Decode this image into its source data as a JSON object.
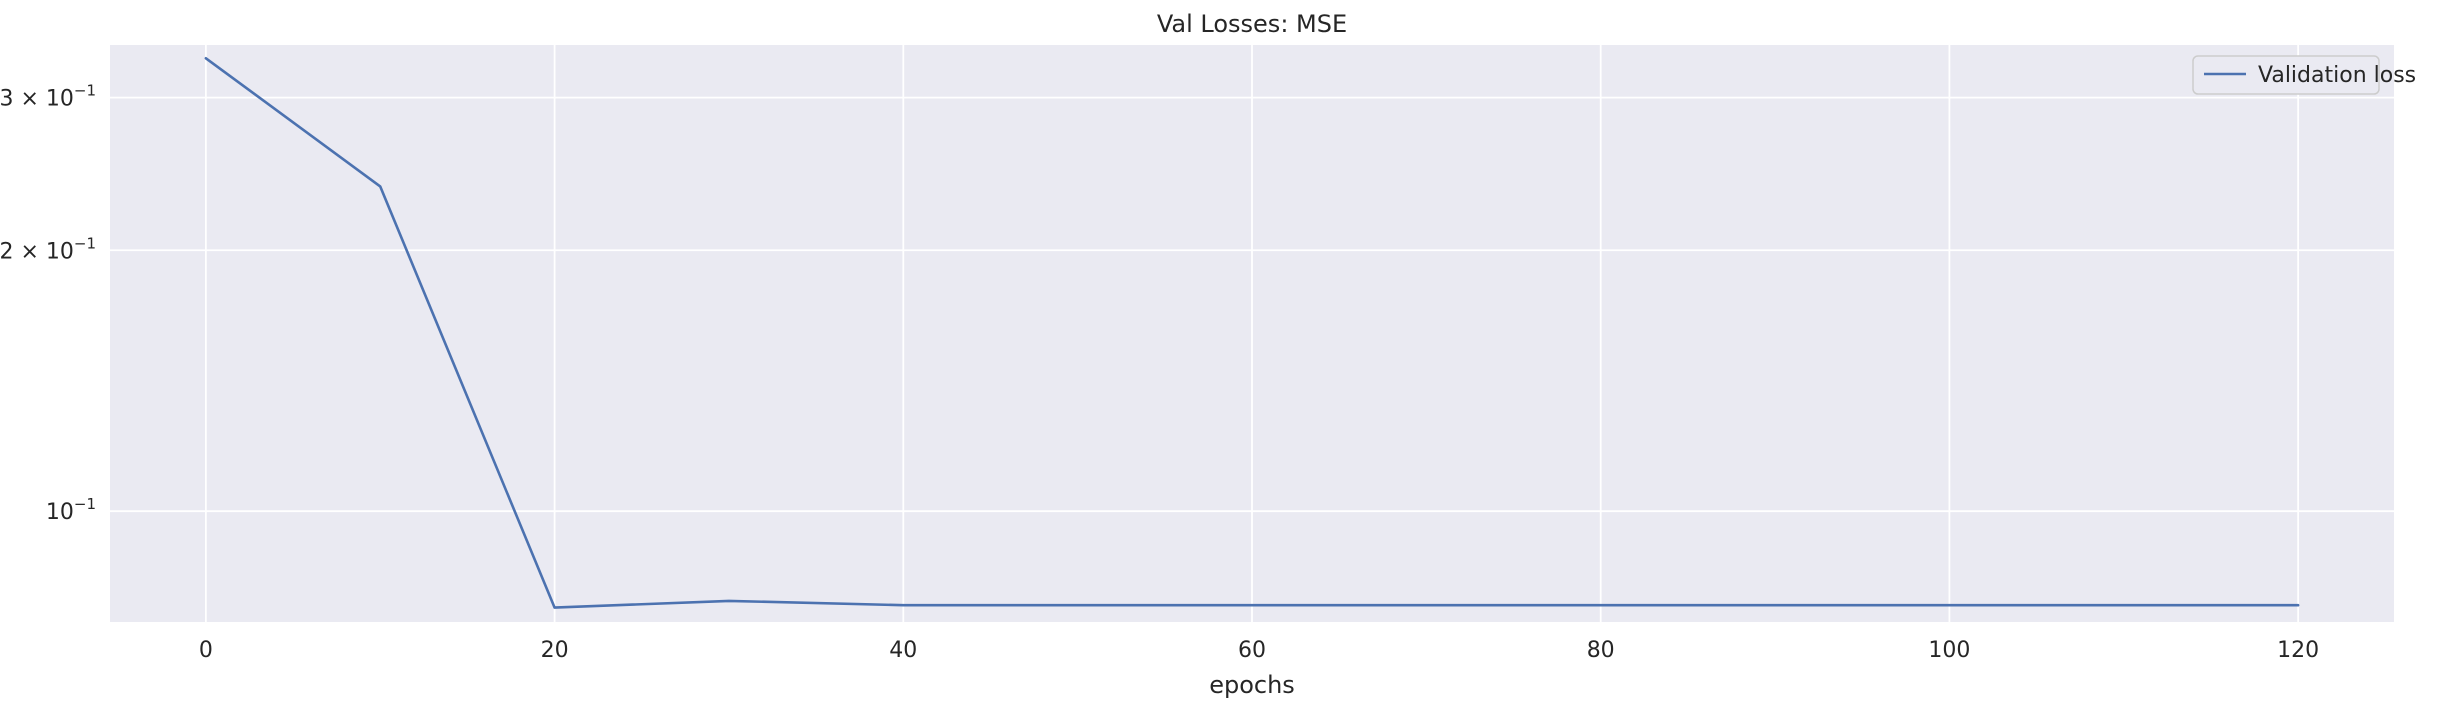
{
  "chart_data": {
    "type": "line",
    "title": "Val Losses:  MSE",
    "xlabel": "epochs",
    "ylabel": "",
    "yscale": "log",
    "xlim": [
      -5.5,
      125.5
    ],
    "ylim": [
      0.0745,
      0.345
    ],
    "grid": true,
    "legend_position": "top-right",
    "x_ticks": [
      0,
      20,
      40,
      60,
      80,
      100,
      120
    ],
    "x_tick_labels": [
      "0",
      "20",
      "40",
      "60",
      "80",
      "100",
      "120"
    ],
    "y_ticks": [
      {
        "value": 0.1,
        "base": "10",
        "exp": "−1",
        "mantissa": ""
      },
      {
        "value": 0.2,
        "base": "10",
        "exp": "−1",
        "mantissa": "2 × "
      },
      {
        "value": 0.3,
        "base": "10",
        "exp": "−1",
        "mantissa": "3 × "
      }
    ],
    "series": [
      {
        "name": "Validation loss",
        "color": "#4c72b0",
        "x": [
          0,
          10,
          20,
          30,
          40,
          50,
          60,
          70,
          80,
          90,
          100,
          110,
          120
        ],
        "y": [
          0.333,
          0.237,
          0.0774,
          0.0788,
          0.0779,
          0.0779,
          0.0779,
          0.0779,
          0.0779,
          0.0779,
          0.0779,
          0.0779,
          0.0779
        ]
      }
    ],
    "colors": {
      "plot_background": "#eaeaf2",
      "grid": "#ffffff"
    }
  }
}
